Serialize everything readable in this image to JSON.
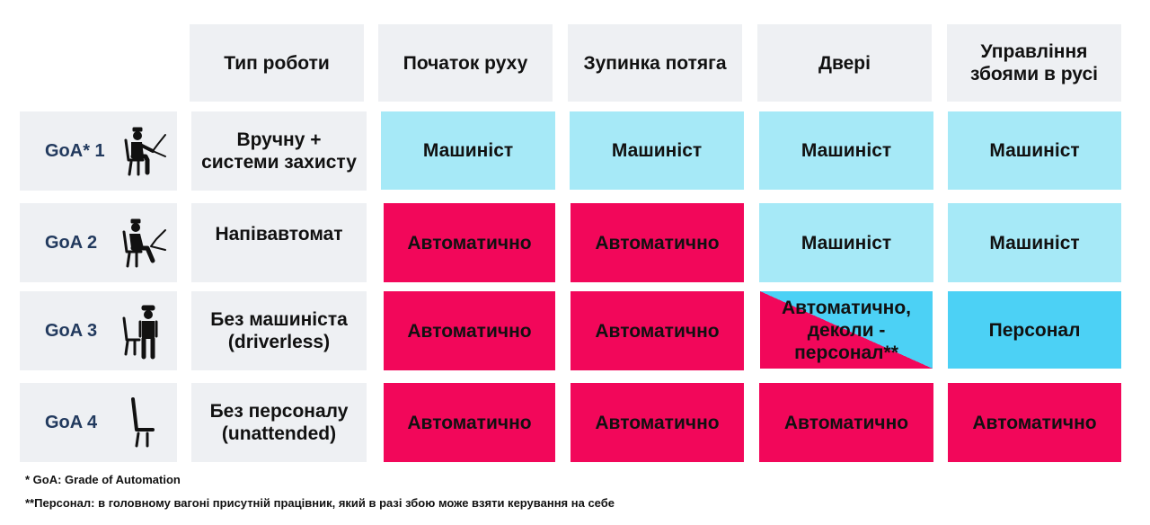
{
  "headers": {
    "type": "Тип роботи",
    "start": "Початок руху",
    "stop": "Зупинка потяга",
    "doors": "Двері",
    "failures": "Управління збоями в русі"
  },
  "rows": [
    {
      "label": "GoA* 1",
      "type": "Вручну + системи захисту",
      "start": "Машиніст",
      "stop": "Машиніст",
      "doors": "Машиніст",
      "failures": "Машиніст",
      "icon": "driver-seated-with-controls-icon"
    },
    {
      "label": "GoA 2",
      "type": "Напівавтомат",
      "start": "Автоматично",
      "stop": "Автоматично",
      "doors": "Машиніст",
      "failures": "Машиніст",
      "icon": "driver-relaxed-with-controls-icon"
    },
    {
      "label": "GoA 3",
      "type": "Без машиніста (driverless)",
      "start": "Автоматично",
      "stop": "Автоматично",
      "doors": "Автоматично, деколи - персонал**",
      "failures": "Персонал",
      "icon": "attendant-standing-icon"
    },
    {
      "label": "GoA 4",
      "type": "Без персоналу (unattended)",
      "start": "Автоматично",
      "stop": "Автоматично",
      "doors": "Автоматично",
      "failures": "Автоматично",
      "icon": "empty-seat-icon"
    }
  ],
  "colors": {
    "manual": "#a6e9f7",
    "automatic": "#f2075a",
    "staff": "#4cd1f5",
    "label_bg": "#eef0f3"
  },
  "footnotes": {
    "goa": "* GoA: Grade of Automation",
    "staff": "**Персонал: в головному вагоні присутній працівник, який в разі збою може взяти керування на себе"
  }
}
